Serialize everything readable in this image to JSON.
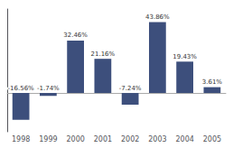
{
  "chart_data": {
    "type": "bar",
    "categories": [
      "1998",
      "1999",
      "2000",
      "2001",
      "2002",
      "2003",
      "2004",
      "2005"
    ],
    "values": [
      -16.56,
      -1.74,
      32.46,
      21.16,
      -7.24,
      43.86,
      19.43,
      3.61
    ],
    "value_labels": [
      "-16.56%",
      "-1.74%",
      "32.46%",
      "21.16%",
      "-7.24%",
      "43.86%",
      "19.43%",
      "3.61%"
    ],
    "data_labels": true,
    "color": "#3d4f7c",
    "ylim": [
      -24,
      52
    ],
    "yticks": [],
    "tick_labels": "x",
    "grid": false
  }
}
